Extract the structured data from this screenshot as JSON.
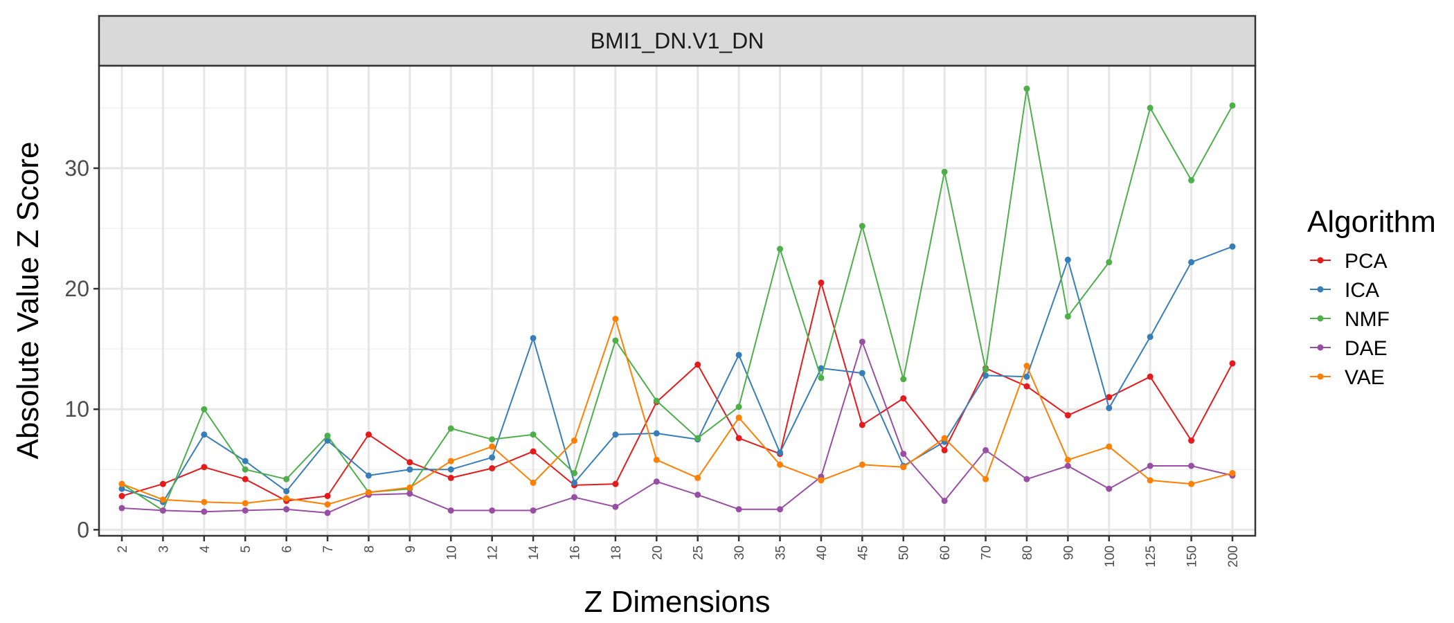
{
  "chart_data": {
    "type": "line",
    "facet_title": "BMI1_DN.V1_DN",
    "xlabel": "Z Dimensions",
    "ylabel": "Absolute Value Z Score",
    "categories": [
      "2",
      "3",
      "4",
      "5",
      "6",
      "7",
      "8",
      "9",
      "10",
      "12",
      "14",
      "16",
      "18",
      "20",
      "25",
      "30",
      "35",
      "40",
      "45",
      "50",
      "60",
      "70",
      "80",
      "90",
      "100",
      "125",
      "150",
      "200"
    ],
    "ylim": [
      -0.5,
      38.5
    ],
    "yticks": [
      0,
      10,
      20,
      30
    ],
    "grid": true,
    "legend": {
      "title": "Algorithm",
      "position": "right"
    },
    "series": [
      {
        "name": "PCA",
        "color": "#E41A1C",
        "values": [
          2.8,
          3.8,
          5.2,
          4.2,
          2.4,
          2.8,
          7.9,
          5.6,
          4.3,
          5.1,
          6.5,
          3.7,
          3.8,
          10.6,
          13.7,
          7.6,
          6.3,
          20.5,
          8.7,
          10.9,
          6.6,
          13.4,
          11.9,
          9.5,
          11.0,
          12.7,
          7.4,
          13.8
        ]
      },
      {
        "name": "ICA",
        "color": "#377EB8",
        "values": [
          3.4,
          2.3,
          7.9,
          5.7,
          3.2,
          7.4,
          4.5,
          5.0,
          5.0,
          6.0,
          15.9,
          3.9,
          7.9,
          8.0,
          7.5,
          14.5,
          6.4,
          13.4,
          13.0,
          5.3,
          7.3,
          12.8,
          12.7,
          22.4,
          10.1,
          16.0,
          22.2,
          23.5
        ]
      },
      {
        "name": "NMF",
        "color": "#4DAF4A",
        "values": [
          3.8,
          1.6,
          10.0,
          5.0,
          4.2,
          7.8,
          3.1,
          3.4,
          8.4,
          7.5,
          7.9,
          4.7,
          15.7,
          10.7,
          7.6,
          10.2,
          23.3,
          12.6,
          25.2,
          12.5,
          29.7,
          13.3,
          36.6,
          17.7,
          22.2,
          35.0,
          29.0,
          35.2
        ]
      },
      {
        "name": "DAE",
        "color": "#984EA3",
        "values": [
          1.8,
          1.6,
          1.5,
          1.6,
          1.7,
          1.4,
          2.9,
          3.0,
          1.6,
          1.6,
          1.6,
          2.7,
          1.9,
          4.0,
          2.9,
          1.7,
          1.7,
          4.4,
          15.6,
          6.3,
          2.4,
          6.6,
          4.2,
          5.3,
          3.4,
          5.3,
          5.3,
          4.5
        ]
      },
      {
        "name": "VAE",
        "color": "#FF7F00",
        "values": [
          3.8,
          2.5,
          2.3,
          2.2,
          2.6,
          2.1,
          3.1,
          3.5,
          5.7,
          6.9,
          3.9,
          7.4,
          17.5,
          5.8,
          4.3,
          9.3,
          5.4,
          4.1,
          5.4,
          5.2,
          7.6,
          4.2,
          13.6,
          5.8,
          6.9,
          4.1,
          3.8,
          4.7
        ]
      }
    ]
  }
}
